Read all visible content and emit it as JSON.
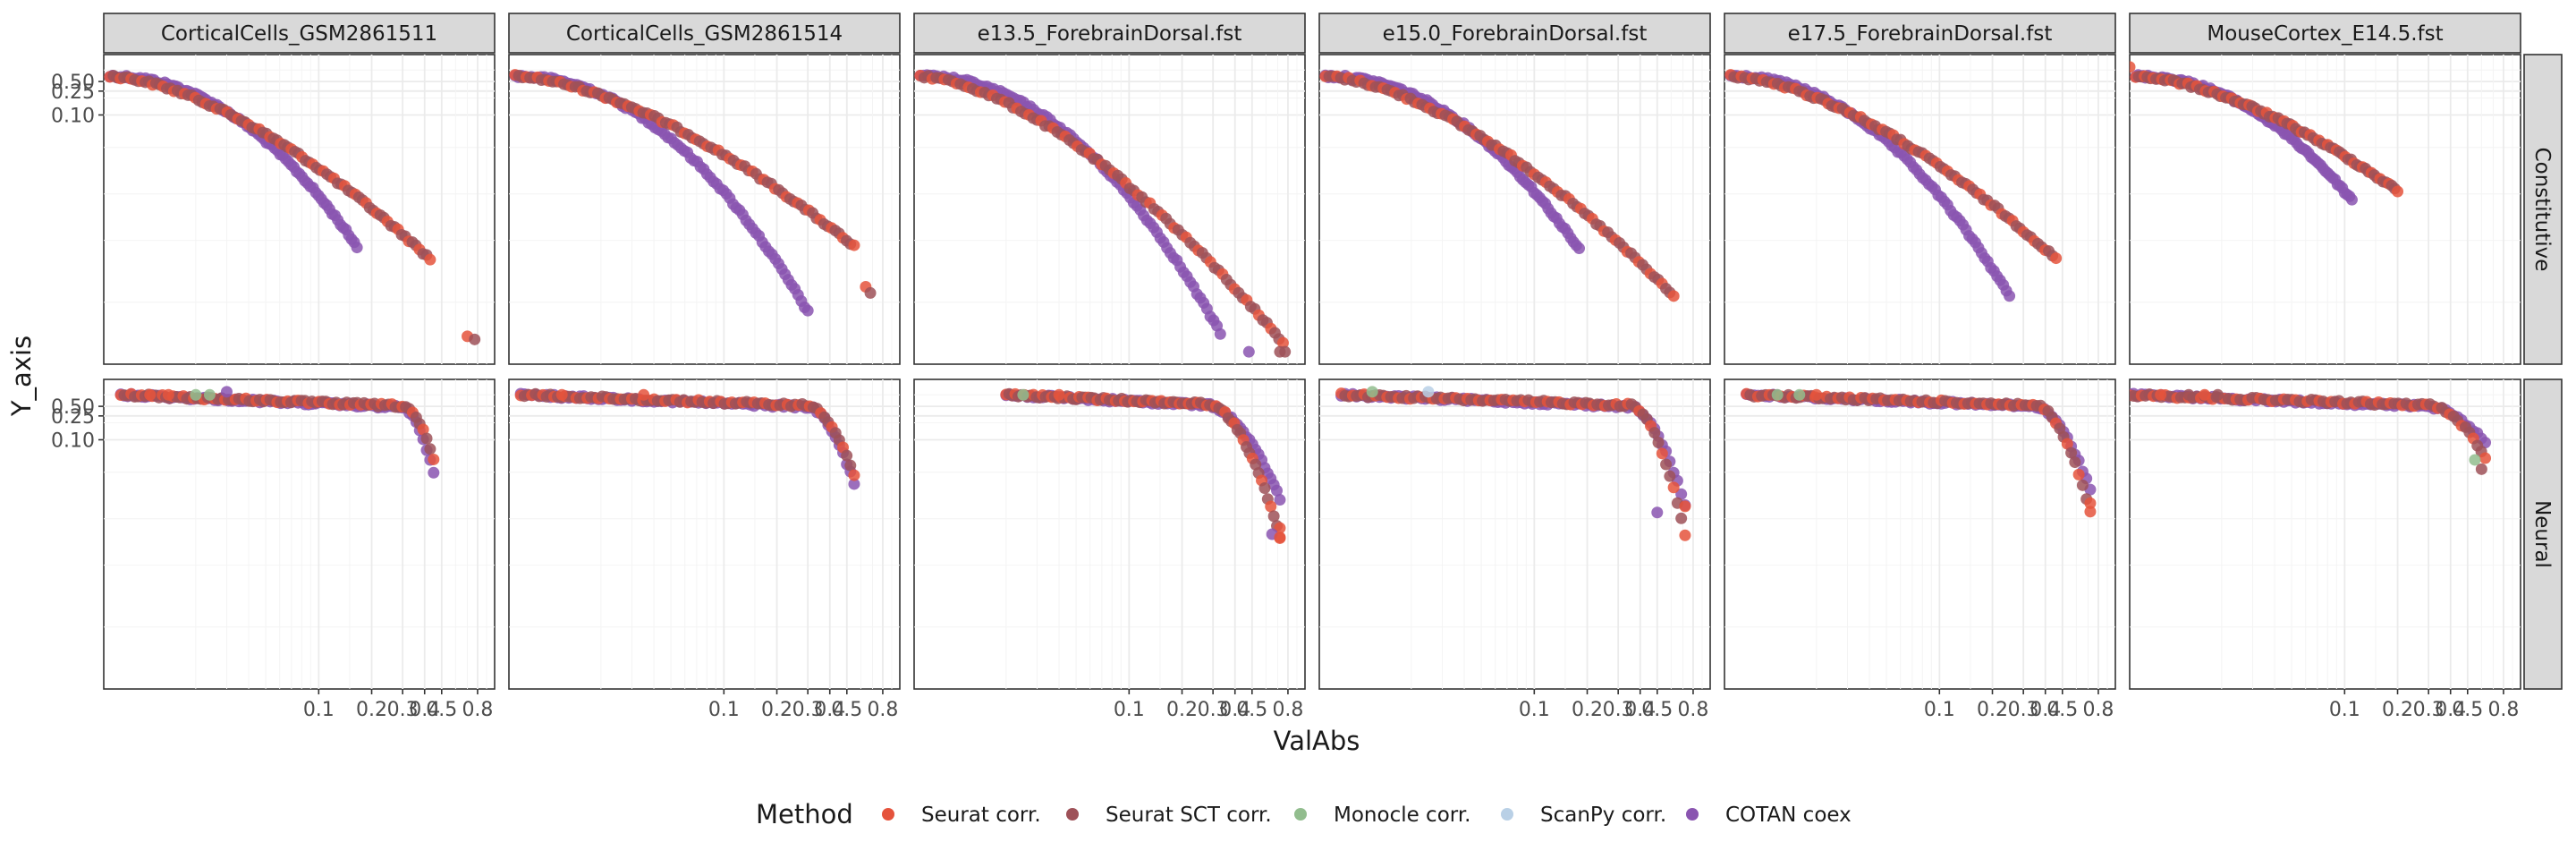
{
  "chart_data": {
    "type": "scatter",
    "facet_columns": [
      "CorticalCells_GSM2861511",
      "CorticalCells_GSM2861514",
      "e13.5_ForebrainDorsal.fst",
      "e15.0_ForebrainDorsal.fst",
      "e17.5_ForebrainDorsal.fst",
      "MouseCortex_E14.5.fst"
    ],
    "facet_rows": [
      "Constitutive",
      "Neural"
    ],
    "xlabel": "ValAbs",
    "ylabel": "Y_axis",
    "x_scale": "log10",
    "y_scale": "pseudo-log (descending)",
    "x_ticks": [
      0.1,
      0.2,
      0.3,
      0.4,
      0.5,
      0.8
    ],
    "x_tick_labels": [
      "0.1",
      "0.2",
      "0.3",
      "0.4",
      "0.5",
      "0.8"
    ],
    "y_ticks": [
      0.5,
      0.25,
      0.1
    ],
    "y_tick_labels": [
      "0.50",
      "0.25",
      "0.10"
    ],
    "xlim": [
      0.006,
      1.0
    ],
    "legend": {
      "title": "Method",
      "position": "bottom"
    },
    "series": [
      {
        "name": "Seurat corr.",
        "color": "#E5533C"
      },
      {
        "name": "Seurat SCT corr.",
        "color": "#9E5158"
      },
      {
        "name": "Monocle corr.",
        "color": "#92BD8E"
      },
      {
        "name": "ScanPy corr.",
        "color": "#B9D0E6"
      },
      {
        "name": "COTAN coex",
        "color": "#8A55B0"
      }
    ],
    "curves": {
      "Constitutive": [
        {
          "purple_end": 0.165,
          "purple_depth": 0.62,
          "red_end": 0.43,
          "red_depth": 0.66,
          "extra": [
            [
              0.7,
              0.91,
              "#E5533C"
            ],
            [
              0.77,
              0.92,
              "#9E5158"
            ]
          ]
        },
        {
          "purple_end": 0.3,
          "purple_depth": 0.83,
          "red_end": 0.55,
          "red_depth": 0.62,
          "extra": [
            [
              0.64,
              0.75,
              "#E5533C"
            ],
            [
              0.68,
              0.77,
              "#9E5158"
            ]
          ]
        },
        {
          "purple_end": 0.33,
          "purple_depth": 0.9,
          "red_end": 0.75,
          "red_depth": 0.93,
          "extra": [
            [
              0.48,
              0.96,
              "#8A55B0"
            ],
            [
              0.72,
              0.96,
              "#9E5158"
            ],
            [
              0.77,
              0.96,
              "#9E5158"
            ]
          ]
        },
        {
          "purple_end": 0.18,
          "purple_depth": 0.63,
          "red_end": 0.62,
          "red_depth": 0.78,
          "extra": []
        },
        {
          "purple_end": 0.25,
          "purple_depth": 0.78,
          "red_end": 0.46,
          "red_depth": 0.66,
          "extra": []
        },
        {
          "purple_end": 0.11,
          "purple_depth": 0.47,
          "red_end": 0.2,
          "red_depth": 0.44,
          "extra": [
            [
              0.006,
              0.04,
              "#E5533C"
            ]
          ]
        }
      ],
      "Neural": [
        {
          "start": 0.0075,
          "bend": 0.3,
          "end": 0.45,
          "red_depth": 0.26,
          "purple_depth": 0.3,
          "extra": [
            [
              0.011,
              0.05,
              "#E5533C"
            ],
            [
              0.014,
              0.05,
              "#E5533C"
            ],
            [
              0.02,
              0.05,
              "#92BD8E"
            ],
            [
              0.024,
              0.05,
              "#92BD8E"
            ],
            [
              0.03,
              0.04,
              "#8A55B0"
            ]
          ]
        },
        {
          "start": 0.007,
          "bend": 0.3,
          "end": 0.55,
          "red_depth": 0.31,
          "purple_depth": 0.33,
          "extra": [
            [
              0.012,
              0.05,
              "#E5533C"
            ],
            [
              0.035,
              0.05,
              "#E5533C"
            ]
          ]
        },
        {
          "start": 0.02,
          "bend": 0.28,
          "end": 0.72,
          "red_depth": 0.51,
          "purple_depth": 0.38,
          "extra": [
            [
              0.025,
              0.05,
              "#92BD8E"
            ],
            [
              0.04,
              0.05,
              "#E5533C"
            ],
            [
              0.72,
              0.48,
              "#E5533C"
            ],
            [
              0.65,
              0.5,
              "#8A55B0"
            ],
            [
              0.72,
              0.51,
              "#E5533C"
            ]
          ]
        },
        {
          "start": 0.008,
          "bend": 0.35,
          "end": 0.72,
          "red_depth": 0.5,
          "purple_depth": 0.4,
          "extra": [
            [
              0.012,
              0.04,
              "#92BD8E"
            ],
            [
              0.025,
              0.04,
              "#B9D0E6"
            ],
            [
              0.5,
              0.43,
              "#8A55B0"
            ],
            [
              0.72,
              0.41,
              "#E5533C"
            ]
          ]
        },
        {
          "start": 0.008,
          "bend": 0.35,
          "end": 0.72,
          "red_depth": 0.43,
          "purple_depth": 0.35,
          "extra": [
            [
              0.012,
              0.05,
              "#92BD8E"
            ],
            [
              0.016,
              0.05,
              "#92BD8E"
            ],
            [
              0.02,
              0.05,
              "#E5533C"
            ],
            [
              0.72,
              0.4,
              "#E5533C"
            ]
          ]
        },
        {
          "start": 0.006,
          "bend": 0.3,
          "end": 0.63,
          "red_depth": 0.25,
          "purple_depth": 0.2,
          "extra": [
            [
              0.009,
              0.05,
              "#E5533C"
            ],
            [
              0.013,
              0.05,
              "#9E5158"
            ],
            [
              0.016,
              0.05,
              "#E5533C"
            ],
            [
              0.019,
              0.05,
              "#9E5158"
            ],
            [
              0.55,
              0.26,
              "#92BD8E"
            ],
            [
              0.6,
              0.29,
              "#9E5158"
            ]
          ]
        }
      ]
    }
  }
}
